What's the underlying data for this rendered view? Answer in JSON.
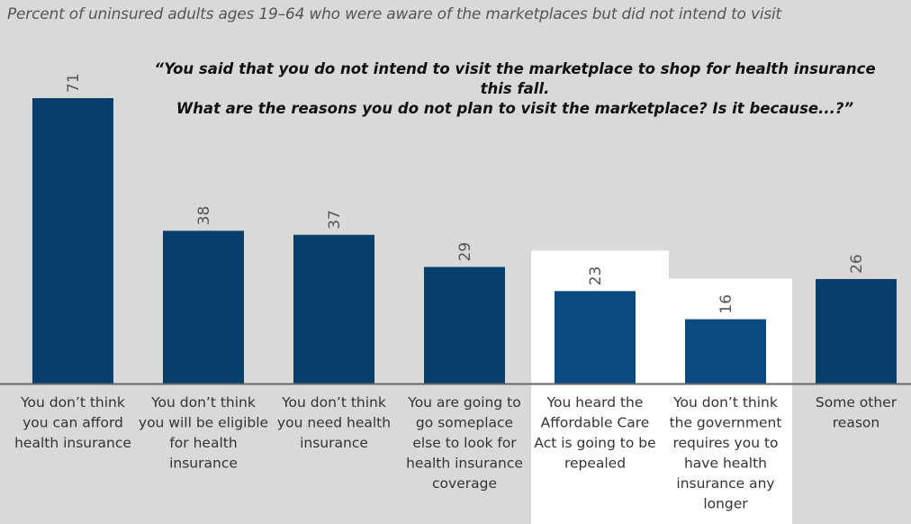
{
  "chart_data": {
    "type": "bar",
    "title": "Percent of uninsured adults ages 19–64 who were aware of the marketplaces but did not intend to visit",
    "annotation": [
      "“You said that you do not intend to visit the marketplace to shop for health insurance this fall.",
      "What are the reasons you do not plan to visit the marketplace? Is it because...?”"
    ],
    "categories": [
      [
        "You don’t think",
        "you can afford",
        "health insurance"
      ],
      [
        "You don’t think",
        "you will be eligible",
        "for health",
        "insurance"
      ],
      [
        "You don’t think",
        "you need health",
        "insurance"
      ],
      [
        "You are going to",
        "go someplace",
        "else to look for",
        "health insurance",
        "coverage"
      ],
      [
        "You heard the",
        "Affordable Care",
        "Act is going to be",
        "repealed"
      ],
      [
        "You don’t think",
        "the government",
        "requires you to",
        "have health",
        "insurance any",
        "longer"
      ],
      [
        "Some other",
        "reason"
      ]
    ],
    "values": [
      71,
      38,
      37,
      29,
      23,
      16,
      26
    ],
    "highlighted": [
      false,
      false,
      false,
      false,
      true,
      true,
      false
    ],
    "ylim": [
      0,
      75
    ],
    "grid": false,
    "colors": {
      "bar": "#063e6c",
      "bar_highlight": "#0b4a80",
      "highlight_bg": "#ffffff",
      "background": "#d9d9d9"
    }
  }
}
